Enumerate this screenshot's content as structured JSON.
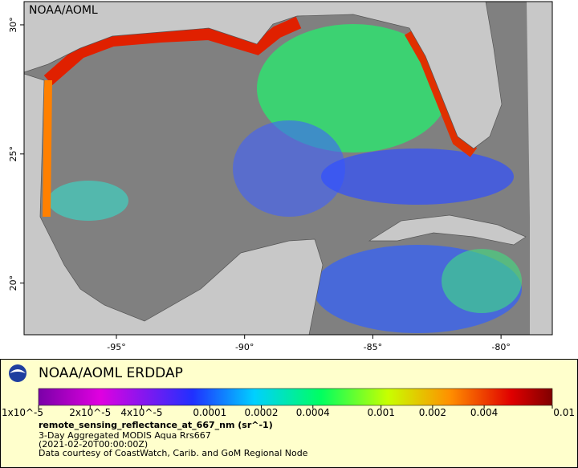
{
  "map": {
    "watermark": "NOAA/AOML",
    "xlim": [
      -98.6,
      -78.0
    ],
    "ylim": [
      18.0,
      30.9
    ],
    "xticks": [
      {
        "value": -95,
        "label": "-95°"
      },
      {
        "value": -90,
        "label": "-90°"
      },
      {
        "value": -85,
        "label": "-85°"
      },
      {
        "value": -80,
        "label": "-80°"
      }
    ],
    "yticks": [
      {
        "value": 20,
        "label": "20°"
      },
      {
        "value": 25,
        "label": "25°"
      },
      {
        "value": 30,
        "label": "30°"
      }
    ]
  },
  "legend": {
    "title": "NOAA/AOML ERDDAP",
    "colorbar": {
      "lim": [
        1e-05,
        0.01
      ],
      "log": true,
      "ticks": [
        {
          "value": 1e-05,
          "label": "1x10^-5"
        },
        {
          "value": 2e-05,
          "label": "2x10^-5"
        },
        {
          "value": 4e-05,
          "label": "4x10^-5"
        },
        0.0001,
        0.0002,
        0.0004,
        0.001,
        0.002,
        0.004,
        0.01
      ]
    },
    "variable": "remote_sensing_reflectance_at_667_nm (sr^-1)",
    "lines": [
      "3-Day Aggregated MODIS Aqua Rrs667",
      "(2021-02-20T00:00:00Z)",
      "Data courtesy of CoastWatch, Carib. and GoM Regional Node"
    ]
  }
}
